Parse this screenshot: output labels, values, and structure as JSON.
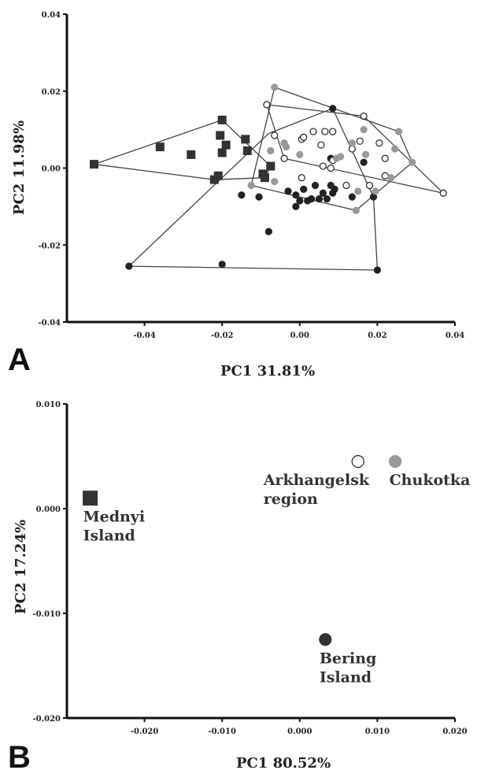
{
  "chart_data": [
    {
      "panel": "A",
      "type": "scatter",
      "xlabel": "PC1 31.81%",
      "ylabel": "PC2 11.98%",
      "xlim": [
        -0.06,
        0.04
      ],
      "ylim": [
        -0.04,
        0.04
      ],
      "xticks": [
        "-0.04",
        "-0.02",
        "0.00",
        "0.02",
        "0.04"
      ],
      "xtick_values": [
        -0.04,
        -0.02,
        0.0,
        0.02,
        0.04
      ],
      "yticks": [
        "0.04",
        "0.02",
        "0.00",
        "-0.02",
        "-0.04"
      ],
      "ytick_values": [
        0.04,
        0.02,
        0.0,
        -0.02,
        -0.04
      ],
      "grid": false,
      "series": [
        {
          "marker": "square",
          "color": "#333333",
          "fill": "#333333",
          "points": [
            [
              -0.053,
              0.001
            ],
            [
              -0.036,
              0.0055
            ],
            [
              -0.028,
              0.0035
            ],
            [
              -0.021,
              -0.002
            ],
            [
              -0.022,
              -0.003
            ],
            [
              -0.02,
              0.0125
            ],
            [
              -0.0205,
              0.0085
            ],
            [
              -0.02,
              0.004
            ],
            [
              -0.019,
              0.006
            ],
            [
              -0.014,
              0.0075
            ],
            [
              -0.0135,
              0.0045
            ],
            [
              -0.0095,
              -0.0015
            ],
            [
              -0.009,
              -0.0025
            ],
            [
              -0.0075,
              0.0005
            ]
          ],
          "hull": [
            [
              -0.053,
              0.001
            ],
            [
              -0.02,
              0.0125
            ],
            [
              -0.0075,
              0.0005
            ],
            [
              -0.009,
              -0.0025
            ],
            [
              -0.022,
              -0.003
            ]
          ]
        },
        {
          "marker": "circle",
          "color": "#222222",
          "fill": "#222222",
          "points": [
            [
              -0.044,
              -0.0255
            ],
            [
              -0.02,
              -0.025
            ],
            [
              0.02,
              -0.0265
            ],
            [
              -0.008,
              -0.0165
            ],
            [
              -0.015,
              -0.007
            ],
            [
              -0.0105,
              -0.0075
            ],
            [
              -0.003,
              -0.006
            ],
            [
              -0.001,
              -0.007
            ],
            [
              0.0,
              -0.0085
            ],
            [
              0.002,
              -0.0085
            ],
            [
              0.003,
              -0.008
            ],
            [
              0.005,
              -0.008
            ],
            [
              0.007,
              -0.008
            ],
            [
              -0.001,
              -0.01
            ],
            [
              0.001,
              -0.0055
            ],
            [
              0.004,
              -0.0045
            ],
            [
              0.008,
              -0.0045
            ],
            [
              0.006,
              -0.0065
            ],
            [
              0.008,
              0.0025
            ],
            [
              0.009,
              -0.0055
            ],
            [
              0.0085,
              -0.0065
            ],
            [
              0.0135,
              -0.0075
            ],
            [
              0.0085,
              0.0155
            ],
            [
              0.0165,
              0.0015
            ],
            [
              0.019,
              -0.0075
            ]
          ],
          "hull": [
            [
              -0.044,
              -0.0255
            ],
            [
              -0.008,
              0.009
            ],
            [
              0.0085,
              0.0155
            ],
            [
              0.019,
              -0.0075
            ],
            [
              0.02,
              -0.0265
            ]
          ]
        },
        {
          "marker": "circle",
          "color": "#222222",
          "fill": "#ffffff",
          "points": [
            [
              -0.0085,
              0.0165
            ],
            [
              -0.0065,
              0.0085
            ],
            [
              -0.004,
              0.0025
            ],
            [
              0.0005,
              0.0075
            ],
            [
              0.001,
              0.008
            ],
            [
              0.0035,
              0.0095
            ],
            [
              0.0065,
              0.0095
            ],
            [
              0.0085,
              0.0095
            ],
            [
              0.0055,
              0.006
            ],
            [
              0.0155,
              0.007
            ],
            [
              0.0165,
              0.0135
            ],
            [
              0.0135,
              0.005
            ],
            [
              0.0205,
              0.0065
            ],
            [
              0.022,
              0.0025
            ],
            [
              0.022,
              -0.002
            ],
            [
              0.018,
              -0.0045
            ],
            [
              0.012,
              -0.0045
            ],
            [
              0.008,
              0.0
            ],
            [
              0.0085,
              0.002
            ],
            [
              0.006,
              0.0005
            ],
            [
              0.037,
              -0.0065
            ],
            [
              0.0005,
              -0.0025
            ]
          ],
          "hull": [
            [
              -0.0085,
              0.0165
            ],
            [
              0.0165,
              0.0135
            ],
            [
              0.037,
              -0.0065
            ],
            [
              -0.004,
              0.0025
            ]
          ]
        },
        {
          "marker": "circle",
          "color": "#999999",
          "fill": "#999999",
          "points": [
            [
              -0.0065,
              0.021
            ],
            [
              -0.0125,
              -0.0045
            ],
            [
              -0.0065,
              -0.0035
            ],
            [
              -0.0075,
              0.0045
            ],
            [
              -0.004,
              0.0065
            ],
            [
              -0.0035,
              0.0055
            ],
            [
              0.0,
              0.0035
            ],
            [
              0.0095,
              0.0025
            ],
            [
              0.0105,
              0.003
            ],
            [
              0.0135,
              0.0065
            ],
            [
              0.0165,
              0.01
            ],
            [
              0.017,
              0.0035
            ],
            [
              0.0255,
              0.0095
            ],
            [
              0.0245,
              0.005
            ],
            [
              0.029,
              0.0015
            ],
            [
              0.0235,
              -0.0025
            ],
            [
              0.015,
              -0.006
            ],
            [
              0.0195,
              -0.006
            ],
            [
              0.0145,
              -0.011
            ]
          ],
          "hull": [
            [
              -0.0125,
              -0.0045
            ],
            [
              -0.0065,
              0.021
            ],
            [
              0.0255,
              0.0095
            ],
            [
              0.029,
              0.0015
            ],
            [
              0.0145,
              -0.011
            ]
          ]
        }
      ]
    },
    {
      "panel": "B",
      "type": "scatter",
      "xlabel": "PC1 80.52%",
      "ylabel": "PC2 17.24%",
      "xlim": [
        -0.03,
        0.02
      ],
      "ylim": [
        -0.02,
        0.01
      ],
      "xticks": [
        "-0.020",
        "-0.010",
        "0.000",
        "0.010",
        "0.020"
      ],
      "xtick_values": [
        -0.02,
        -0.01,
        0.0,
        0.01,
        0.02
      ],
      "yticks": [
        "0.010",
        "0.000",
        "-0.010",
        "-0.020"
      ],
      "ytick_values": [
        0.01,
        0.0,
        -0.01,
        -0.02
      ],
      "grid": false,
      "series": [
        {
          "name": "Mednyi Island",
          "label_lines": [
            "Mednyi",
            "Island"
          ],
          "label_side": "below",
          "marker": "square",
          "color": "#333333",
          "fill": "#333333",
          "points": [
            [
              -0.027,
              0.001
            ]
          ]
        },
        {
          "name": "Arkhangelsk region",
          "label_lines": [
            "Arkhangelsk",
            "region"
          ],
          "label_side": "below-left",
          "marker": "circle",
          "color": "#222222",
          "fill": "#ffffff",
          "points": [
            [
              0.0075,
              0.0045
            ]
          ]
        },
        {
          "name": "Chukotka",
          "label_lines": [
            "Chukotka"
          ],
          "label_side": "below",
          "marker": "circle",
          "color": "#999999",
          "fill": "#999999",
          "points": [
            [
              0.0123,
              0.0045
            ]
          ]
        },
        {
          "name": "Bering Island",
          "label_lines": [
            "Bering",
            "Island"
          ],
          "label_side": "below",
          "marker": "circle",
          "color": "#333333",
          "fill": "#333333",
          "points": [
            [
              0.0033,
              -0.0125
            ]
          ]
        }
      ]
    }
  ]
}
